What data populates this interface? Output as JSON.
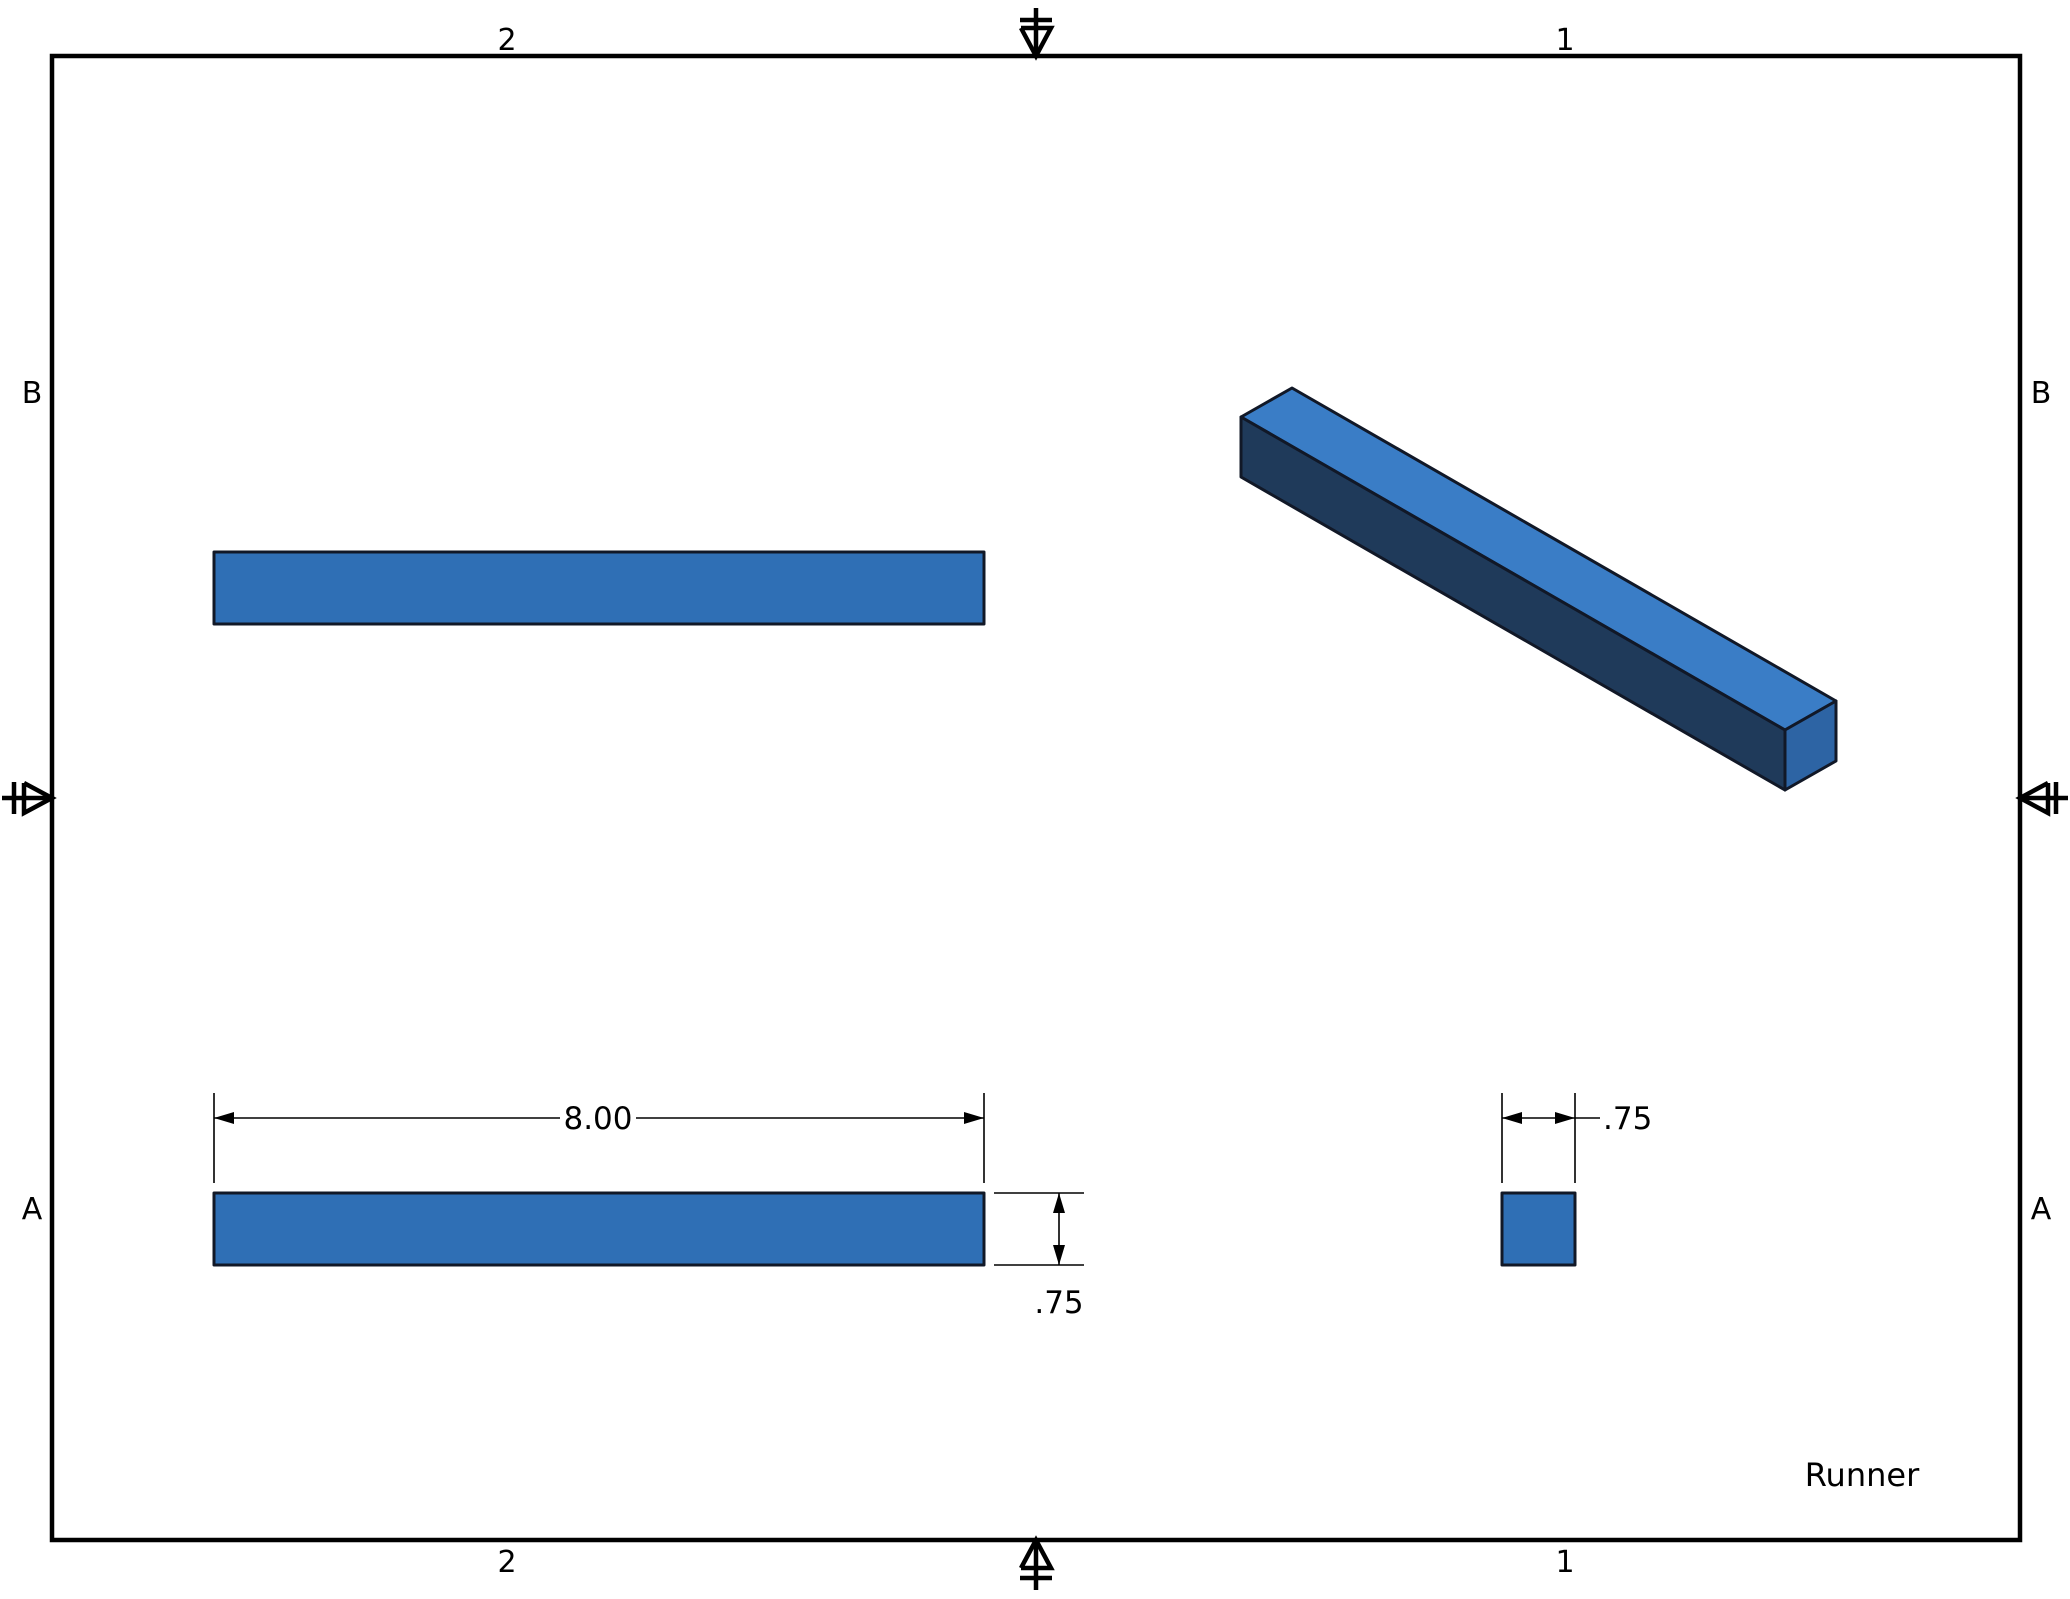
{
  "sheet": {
    "zones_top": [
      "2",
      "1"
    ],
    "zones_bottom": [
      "2",
      "1"
    ],
    "zones_left": [
      "B",
      "A"
    ],
    "zones_right": [
      "B",
      "A"
    ],
    "title": "Runner"
  },
  "dimensions": {
    "length": "8.00",
    "height": ".75",
    "width": ".75"
  },
  "colors": {
    "face_main": "#2f6fb5",
    "face_top": "#3a7dc6",
    "face_side": "#1f3a5a",
    "face_end": "#2d64a4",
    "outline": "#111827"
  }
}
